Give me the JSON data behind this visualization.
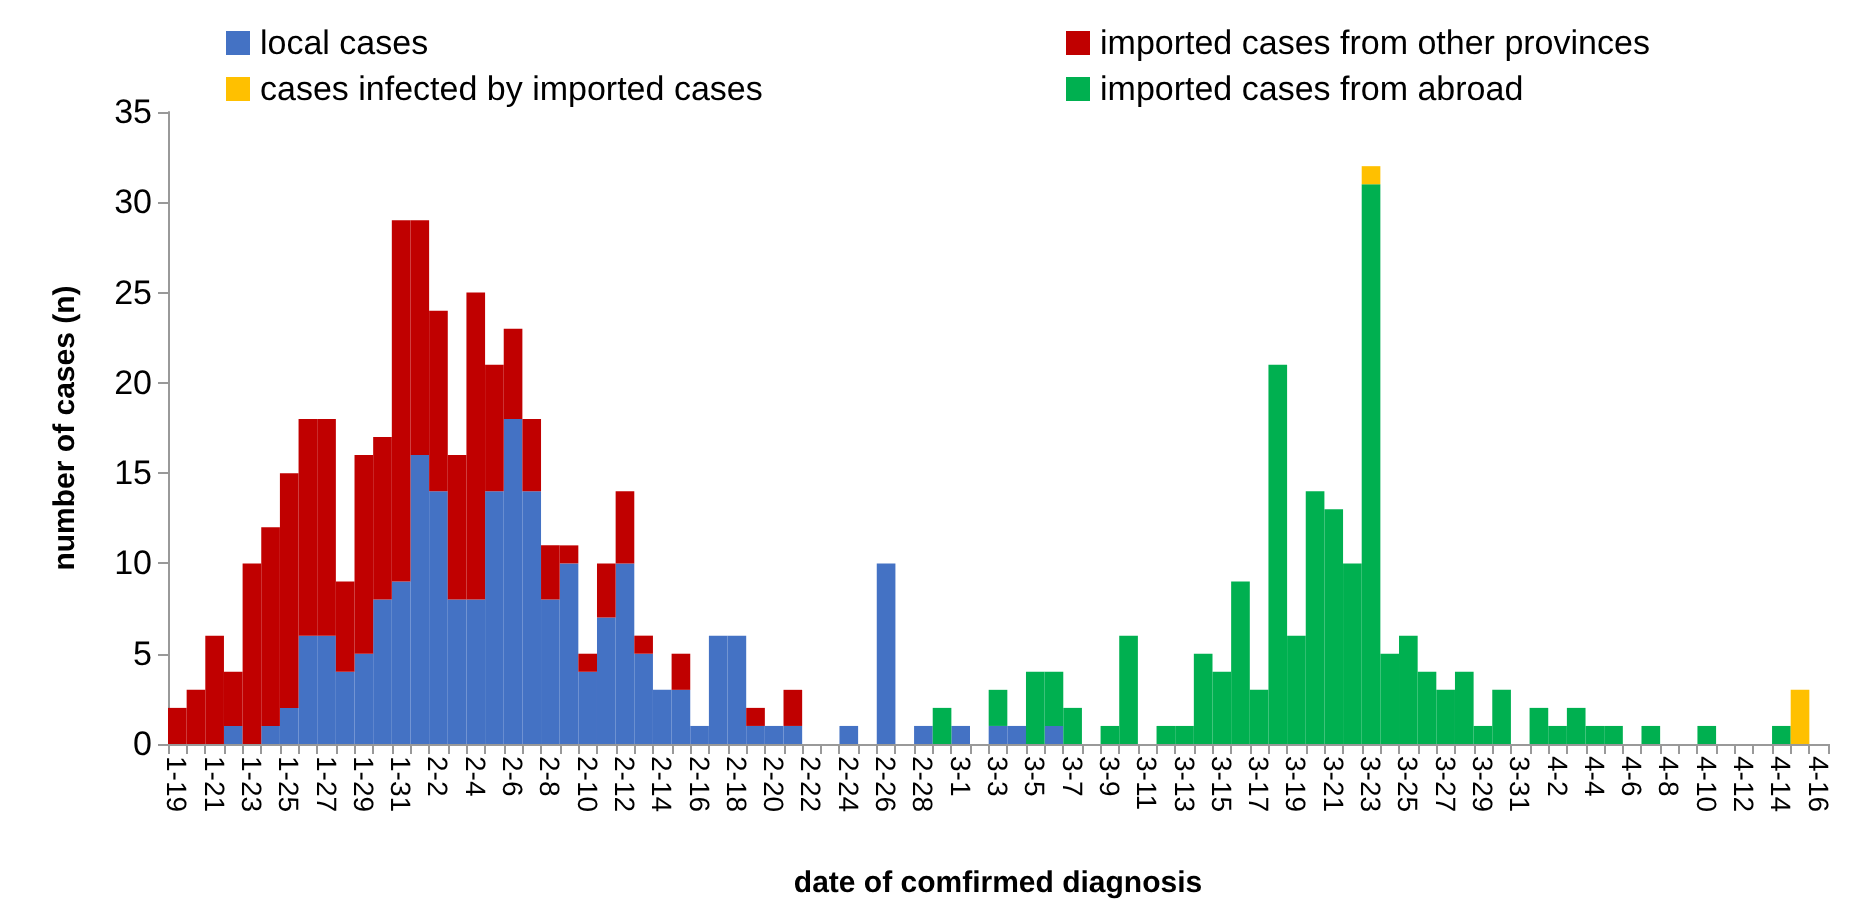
{
  "chart_data": {
    "type": "bar",
    "stacked": true,
    "xlabel": "date of comfirmed diagnosis",
    "ylabel": "number of cases (n)",
    "categories": [
      "1-19",
      null,
      "1-21",
      null,
      "1-23",
      null,
      "1-25",
      null,
      "1-27",
      null,
      "1-29",
      null,
      "1-31",
      null,
      "2-2",
      null,
      "2-4",
      null,
      "2-6",
      null,
      "2-8",
      null,
      "2-10",
      null,
      "2-12",
      null,
      "2-14",
      null,
      "2-16",
      null,
      "2-18",
      null,
      "2-20",
      null,
      "2-22",
      null,
      "2-24",
      null,
      "2-26",
      null,
      "2-28",
      null,
      "3-1",
      null,
      "3-3",
      null,
      "3-5",
      null,
      "3-7",
      null,
      "3-9",
      null,
      "3-11",
      null,
      "3-13",
      null,
      "3-15",
      null,
      "3-17",
      null,
      "3-19",
      null,
      "3-21",
      null,
      "3-23",
      null,
      "3-25",
      null,
      "3-27",
      null,
      "3-29",
      null,
      "3-31",
      null,
      "4-2",
      null,
      "4-4",
      null,
      "4-6",
      null,
      "4-8",
      null,
      "4-10",
      null,
      "4-12",
      null,
      "4-14",
      null,
      "4-16"
    ],
    "series": [
      {
        "name": "local cases",
        "color": "#4472c4",
        "values": [
          0,
          0,
          0,
          1,
          0,
          1,
          2,
          6,
          6,
          4,
          5,
          8,
          9,
          16,
          14,
          8,
          8,
          14,
          18,
          14,
          8,
          10,
          4,
          7,
          10,
          5,
          3,
          3,
          1,
          6,
          6,
          1,
          1,
          1,
          0,
          0,
          1,
          0,
          10,
          0,
          1,
          0,
          1,
          0,
          1,
          1,
          0,
          1,
          0,
          0,
          0,
          0,
          0,
          0,
          0,
          0,
          0,
          0,
          0,
          0,
          0,
          0,
          0,
          0,
          0,
          0,
          0,
          0,
          0,
          0,
          0,
          0,
          0,
          0,
          0,
          0,
          0,
          0,
          0,
          0,
          0,
          0,
          0,
          0,
          0,
          0,
          0,
          0,
          0
        ]
      },
      {
        "name": "imported cases from other provinces",
        "color": "#c00000",
        "values": [
          2,
          3,
          6,
          3,
          10,
          11,
          13,
          12,
          12,
          5,
          11,
          9,
          20,
          13,
          10,
          8,
          17,
          7,
          5,
          4,
          3,
          1,
          1,
          3,
          4,
          1,
          0,
          2,
          0,
          0,
          0,
          1,
          0,
          2,
          0,
          0,
          0,
          0,
          0,
          0,
          0,
          0,
          0,
          0,
          0,
          0,
          0,
          0,
          0,
          0,
          0,
          0,
          0,
          0,
          0,
          0,
          0,
          0,
          0,
          0,
          0,
          0,
          0,
          0,
          0,
          0,
          0,
          0,
          0,
          0,
          0,
          0,
          0,
          0,
          0,
          0,
          0,
          0,
          0,
          0,
          0,
          0,
          0,
          0,
          0,
          0,
          0,
          0,
          0
        ]
      },
      {
        "name": "imported cases from abroad",
        "color": "#00b050",
        "values": [
          0,
          0,
          0,
          0,
          0,
          0,
          0,
          0,
          0,
          0,
          0,
          0,
          0,
          0,
          0,
          0,
          0,
          0,
          0,
          0,
          0,
          0,
          0,
          0,
          0,
          0,
          0,
          0,
          0,
          0,
          0,
          0,
          0,
          0,
          0,
          0,
          0,
          0,
          0,
          0,
          0,
          2,
          0,
          0,
          2,
          0,
          4,
          3,
          2,
          0,
          1,
          6,
          0,
          1,
          1,
          5,
          4,
          9,
          3,
          21,
          6,
          14,
          13,
          10,
          31,
          5,
          6,
          4,
          3,
          4,
          1,
          3,
          0,
          2,
          1,
          2,
          1,
          1,
          0,
          1,
          0,
          0,
          1,
          0,
          0,
          0,
          1,
          0,
          0
        ]
      },
      {
        "name": "cases infected by imported cases",
        "color": "#ffc000",
        "values": [
          0,
          0,
          0,
          0,
          0,
          0,
          0,
          0,
          0,
          0,
          0,
          0,
          0,
          0,
          0,
          0,
          0,
          0,
          0,
          0,
          0,
          0,
          0,
          0,
          0,
          0,
          0,
          0,
          0,
          0,
          0,
          0,
          0,
          0,
          0,
          0,
          0,
          0,
          0,
          0,
          0,
          0,
          0,
          0,
          0,
          0,
          0,
          0,
          0,
          0,
          0,
          0,
          0,
          0,
          0,
          0,
          0,
          0,
          0,
          0,
          0,
          0,
          0,
          0,
          1,
          0,
          0,
          0,
          0,
          0,
          0,
          0,
          0,
          0,
          0,
          0,
          0,
          0,
          0,
          0,
          0,
          0,
          0,
          0,
          0,
          0,
          0,
          3,
          0
        ]
      }
    ],
    "ylim": [
      0,
      35
    ],
    "yticks": [
      0,
      5,
      10,
      15,
      20,
      25,
      30,
      35
    ],
    "grid": false,
    "legend": "top"
  }
}
